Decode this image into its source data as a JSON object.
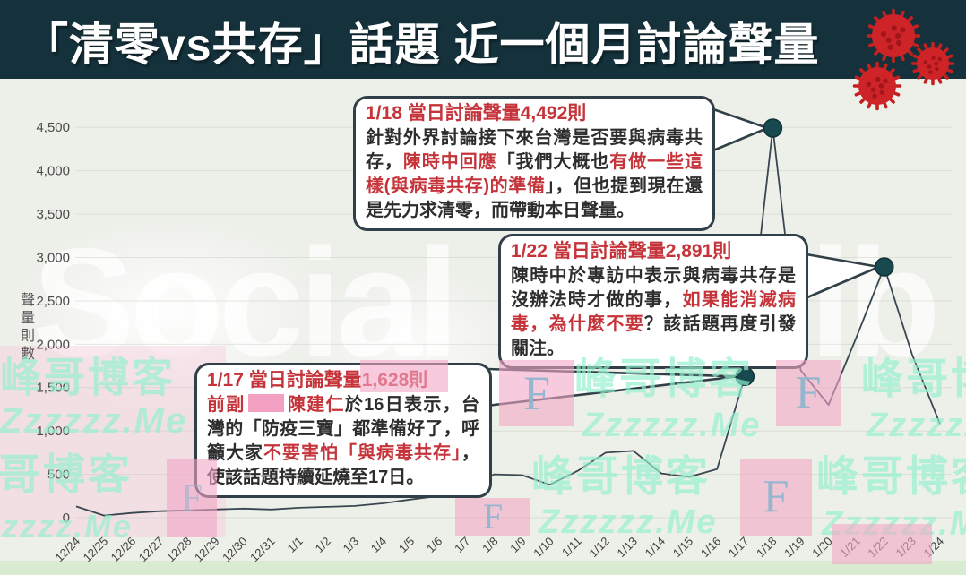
{
  "title_bar": {
    "title": "「清零vs共存」話題 近一個月討論聲量"
  },
  "chart_data": {
    "type": "line",
    "title": "「清零vs共存」話題 近一個月討論聲量",
    "xlabel": "",
    "ylabel": "聲量則數",
    "ylim": [
      0,
      4500
    ],
    "ytick_step": 500,
    "ytick_labels": [
      "0",
      "500",
      "1,000",
      "1,500",
      "2,000",
      "2,500",
      "3,000",
      "3,500",
      "4,000",
      "4,500"
    ],
    "grid": true,
    "legend_position": "none",
    "categories": [
      "12/24",
      "12/25",
      "12/26",
      "12/27",
      "12/28",
      "12/29",
      "12/30",
      "12/31",
      "1/1",
      "1/2",
      "1/3",
      "1/4",
      "1/5",
      "1/6",
      "1/7",
      "1/8",
      "1/9",
      "1/10",
      "1/11",
      "1/12",
      "1/13",
      "1/14",
      "1/15",
      "1/16",
      "1/17",
      "1/18",
      "1/19",
      "1/20",
      "1/21",
      "1/22",
      "1/23",
      "1/24"
    ],
    "values": [
      130,
      25,
      55,
      75,
      85,
      95,
      105,
      95,
      115,
      125,
      135,
      165,
      210,
      250,
      330,
      500,
      490,
      380,
      540,
      750,
      770,
      510,
      470,
      560,
      1628,
      4492,
      1700,
      1300,
      2080,
      2891,
      1880,
      1080
    ],
    "highlight_points": [
      {
        "date": "1/17",
        "value": 1628
      },
      {
        "date": "1/18",
        "value": 4492
      },
      {
        "date": "1/22",
        "value": 2891
      }
    ]
  },
  "callouts": {
    "c18": {
      "title": "1/18 當日討論聲量4,492則",
      "s1": "針對外界討論接下來台灣是否要與病毒共存，",
      "s2": "陳時中回應",
      "s3": "「我們大概也",
      "s4": "有做一些這樣(與病毒共存)的準備",
      "s5": "」，但也提到現在還是先力求清零，而帶動本日聲量。"
    },
    "c22": {
      "title": "1/22 當日討論聲量2,891則",
      "s1": "陳時中於專訪中表示與病毒共存是沒辦法時才做的事，",
      "s2": "如果能消滅病毒，為什麼不要",
      "s3": "？該話題再度引發關注。"
    },
    "c17": {
      "title": "1/17 當日討論聲量1,628則",
      "s1": "前副",
      "s2": "陳建仁",
      "s3": "於16日表示，台灣的「防疫三寶」都準備好了，呼籲大家",
      "s4": "不要害怕「與病毒共存」",
      "s5": "，使該話題持續延燒至17日。"
    }
  },
  "watermarks": {
    "brand_left": "Social",
    "brand_right": "lb",
    "site_name": "峰哥博客",
    "site_url": "Zzzzzz.Me",
    "f_badge": "F"
  }
}
